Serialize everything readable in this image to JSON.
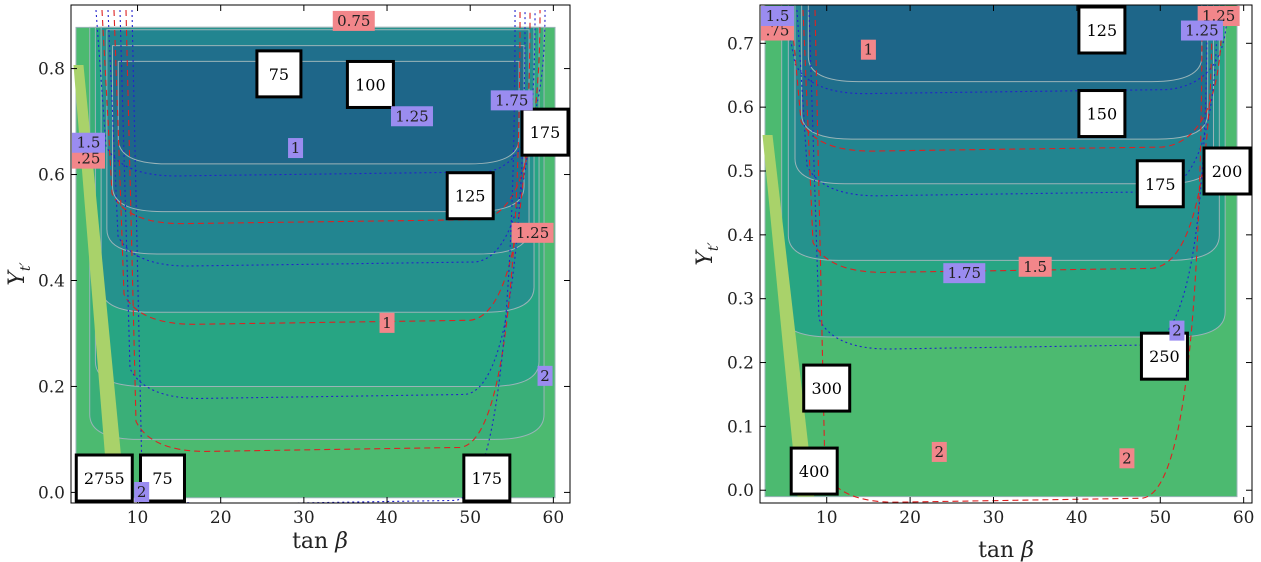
{
  "chart_data": [
    {
      "type": "contour",
      "xlabel": "tan β",
      "ylabel": "Y_t′",
      "xlim": [
        2,
        62
      ],
      "ylim": [
        -0.02,
        0.92
      ],
      "xticks": [
        10,
        20,
        30,
        40,
        50,
        60
      ],
      "yticks": [
        "0.0",
        "0.2",
        "0.4",
        "0.6",
        "0.8"
      ],
      "ytick_values": [
        0.0,
        0.2,
        0.4,
        0.6,
        0.8
      ],
      "filled_levels": [
        {
          "min_y_at_mid": 0.62,
          "color": "#1e6689"
        },
        {
          "min_y_at_mid": 0.53,
          "color": "#206f8c"
        },
        {
          "min_y_at_mid": 0.45,
          "color": "#228590"
        },
        {
          "min_y_at_mid": 0.34,
          "color": "#25928d"
        },
        {
          "min_y_at_mid": 0.2,
          "color": "#27a583"
        },
        {
          "min_y_at_mid": 0.1,
          "color": "#3aaf78"
        },
        {
          "min_y_at_mid": 0.0,
          "color": "#4cba70"
        }
      ],
      "mass_contour_labels": [
        {
          "text": "75",
          "x": 27,
          "y": 0.79
        },
        {
          "text": "100",
          "x": 38,
          "y": 0.77
        },
        {
          "text": "125",
          "x": 50,
          "y": 0.56
        },
        {
          "text": "175",
          "x": 59,
          "y": 0.68
        },
        {
          "text": "2755",
          "x": 6,
          "y": 0.0
        },
        {
          "text": "75",
          "x": 13,
          "y": 0.0
        },
        {
          "text": "175",
          "x": 52,
          "y": 0.0
        }
      ],
      "red_contour_labels": [
        {
          "text": "0.75",
          "x": 36,
          "y": 0.89
        },
        {
          "text": ".25",
          "x": 2.5,
          "y": 0.63
        },
        {
          "text": "1",
          "x": 40,
          "y": 0.32
        },
        {
          "text": "1.25",
          "x": 57.5,
          "y": 0.49
        }
      ],
      "blue_contour_labels": [
        {
          "text": "1",
          "x": 29,
          "y": 0.65
        },
        {
          "text": "1.25",
          "x": 43,
          "y": 0.71
        },
        {
          "text": "1.5",
          "x": 2.5,
          "y": 0.66
        },
        {
          "text": "1.75",
          "x": 55,
          "y": 0.74
        },
        {
          "text": "2",
          "x": 59,
          "y": 0.22
        },
        {
          "text": "2",
          "x": 10.5,
          "y": 0.0
        }
      ]
    },
    {
      "type": "contour",
      "xlabel": "tan β",
      "ylabel": "Y_t′",
      "xlim": [
        2,
        61
      ],
      "ylim": [
        -0.02,
        0.76
      ],
      "xticks": [
        10,
        20,
        30,
        40,
        50,
        60
      ],
      "yticks": [
        "0.0",
        "0.1",
        "0.2",
        "0.3",
        "0.4",
        "0.5",
        "0.6",
        "0.7"
      ],
      "ytick_values": [
        0.0,
        0.1,
        0.2,
        0.3,
        0.4,
        0.5,
        0.6,
        0.7
      ],
      "filled_levels": [
        {
          "min_y_at_mid": 0.64,
          "color": "#1e6689"
        },
        {
          "min_y_at_mid": 0.55,
          "color": "#206f8c"
        },
        {
          "min_y_at_mid": 0.48,
          "color": "#228590"
        },
        {
          "min_y_at_mid": 0.36,
          "color": "#25928d"
        },
        {
          "min_y_at_mid": 0.24,
          "color": "#27a583"
        },
        {
          "min_y_at_mid": 0.0,
          "color": "#4cba70"
        }
      ],
      "mass_contour_labels": [
        {
          "text": "125",
          "x": 43,
          "y": 0.73
        },
        {
          "text": "150",
          "x": 43,
          "y": 0.59
        },
        {
          "text": "175",
          "x": 50,
          "y": 0.48
        },
        {
          "text": "200",
          "x": 59.5,
          "y": 0.5
        },
        {
          "text": "250",
          "x": 50.5,
          "y": 0.21
        },
        {
          "text": "300",
          "x": 10,
          "y": 0.16
        },
        {
          "text": "400",
          "x": 8.5,
          "y": 0.03
        }
      ],
      "red_contour_labels": [
        {
          "text": ".75",
          "x": 2.5,
          "y": 0.72
        },
        {
          "text": "1",
          "x": 15,
          "y": 0.69
        },
        {
          "text": "1.25",
          "x": 57,
          "y": 0.75
        },
        {
          "text": "1.5",
          "x": 35,
          "y": 0.35
        },
        {
          "text": "2",
          "x": 23.5,
          "y": 0.06
        },
        {
          "text": "2",
          "x": 46,
          "y": 0.05
        }
      ],
      "blue_contour_labels": [
        {
          "text": "1.5",
          "x": 2.5,
          "y": 0.75
        },
        {
          "text": "1.25",
          "x": 55,
          "y": 0.72
        },
        {
          "text": "1.75",
          "x": 26.5,
          "y": 0.34
        },
        {
          "text": "2",
          "x": 52,
          "y": 0.25
        }
      ]
    }
  ]
}
